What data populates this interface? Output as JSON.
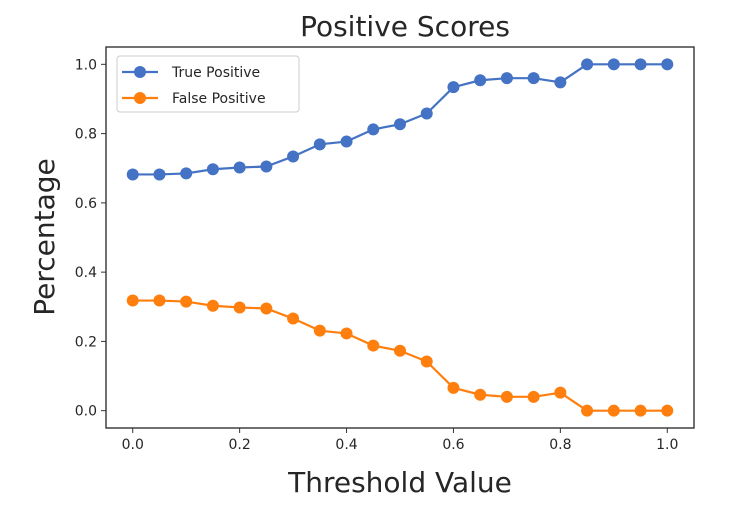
{
  "chart_data": {
    "type": "line",
    "title": "Positive Scores",
    "xlabel": "Threshold Value",
    "ylabel": "Percentage",
    "xlim": [
      -0.05,
      1.05
    ],
    "ylim": [
      -0.05,
      1.05
    ],
    "xticks": [
      0.0,
      0.2,
      0.4,
      0.6,
      0.8,
      1.0
    ],
    "xtick_labels": [
      "0.0",
      "0.2",
      "0.4",
      "0.6",
      "0.8",
      "1.0"
    ],
    "yticks": [
      0.0,
      0.2,
      0.4,
      0.6,
      0.8,
      1.0
    ],
    "ytick_labels": [
      "0.0",
      "0.2",
      "0.4",
      "0.6",
      "0.8",
      "1.0"
    ],
    "grid": false,
    "legend_position": "top-left",
    "x": [
      0.0,
      0.05,
      0.1,
      0.15,
      0.2,
      0.25,
      0.3,
      0.35,
      0.4,
      0.45,
      0.5,
      0.55,
      0.6,
      0.65,
      0.7,
      0.75,
      0.8,
      0.85,
      0.9,
      0.95,
      1.0
    ],
    "series": [
      {
        "name": "True Positive",
        "color": "#4472c4",
        "marker": "circle",
        "values": [
          0.682,
          0.682,
          0.685,
          0.697,
          0.702,
          0.705,
          0.734,
          0.769,
          0.777,
          0.812,
          0.827,
          0.858,
          0.934,
          0.954,
          0.96,
          0.96,
          0.948,
          1.0,
          1.0,
          1.0,
          1.0
        ]
      },
      {
        "name": "False Positive",
        "color": "#ff7f0e",
        "marker": "circle",
        "values": [
          0.318,
          0.318,
          0.315,
          0.303,
          0.298,
          0.295,
          0.266,
          0.231,
          0.223,
          0.188,
          0.173,
          0.142,
          0.066,
          0.046,
          0.04,
          0.04,
          0.052,
          0.0,
          0.0,
          0.0,
          0.0
        ]
      }
    ]
  }
}
